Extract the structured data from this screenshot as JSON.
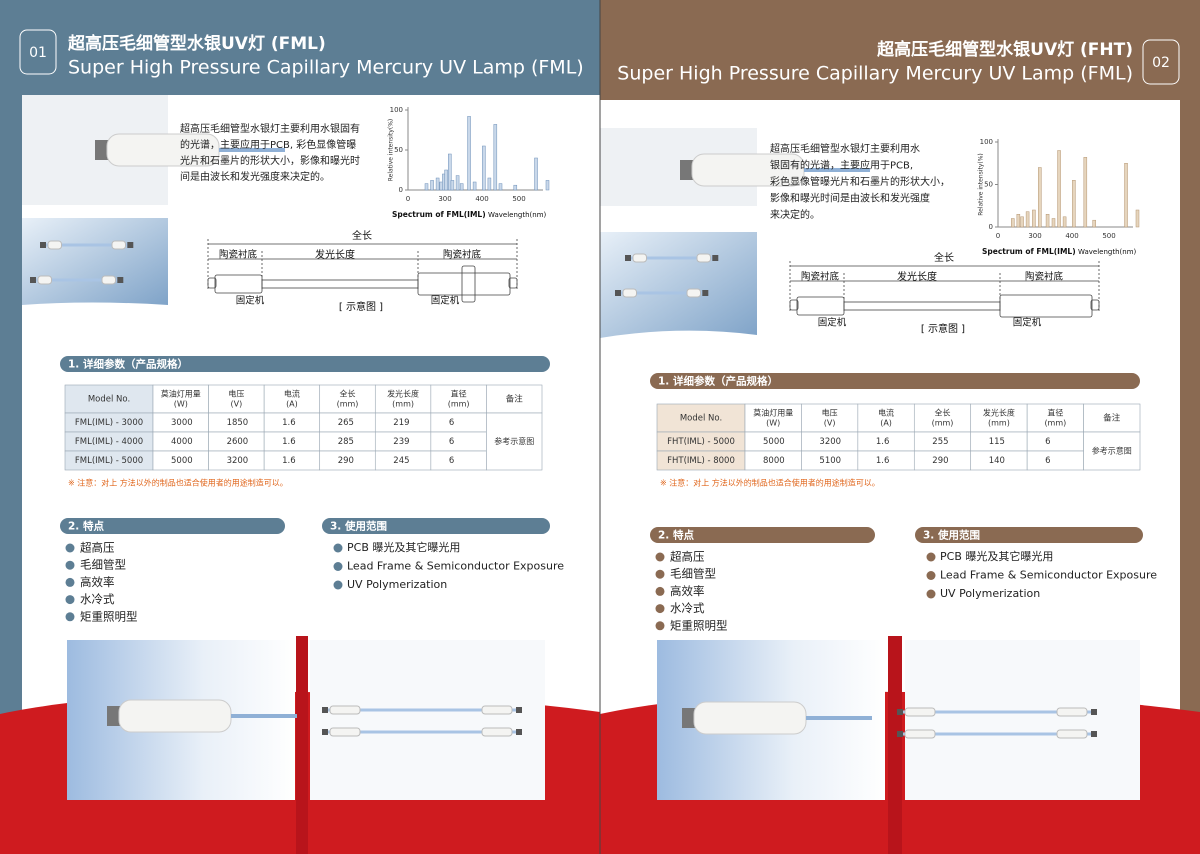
{
  "left": {
    "number": "01",
    "title_cn": "超高压毛细管型水银UV灯 (FML)",
    "title_en": "Super High Pressure Capillary Mercury UV Lamp (FML)",
    "description": [
      "超高压毛细管型水银灯主要利用水银固有",
      "的光谱，主要应用于PCB, 彩色显像管曝",
      "光片和石墨片的形状大小，影像和曝光时",
      "间是由波长和发光强度来决定的。"
    ],
    "spectrum": {
      "y_label": "Relative intensity(%)",
      "caption": "Spectrum of FML(IML)",
      "x_label": "Wavelength(nm)",
      "ylim": [
        0,
        100
      ],
      "yticks": [
        0,
        50,
        100
      ],
      "xticks": [
        0,
        300,
        400,
        500
      ],
      "peaks": [
        [
          250,
          8
        ],
        [
          265,
          12
        ],
        [
          280,
          15
        ],
        [
          290,
          10
        ],
        [
          297,
          20
        ],
        [
          303,
          25
        ],
        [
          313,
          45
        ],
        [
          320,
          12
        ],
        [
          334,
          18
        ],
        [
          345,
          8
        ],
        [
          365,
          92
        ],
        [
          380,
          10
        ],
        [
          405,
          55
        ],
        [
          420,
          15
        ],
        [
          436,
          82
        ],
        [
          450,
          8
        ],
        [
          490,
          6
        ],
        [
          546,
          40
        ],
        [
          577,
          12
        ]
      ]
    },
    "diagram": {
      "total": "全长",
      "ceramic_left": "陶瓷衬底",
      "emit": "发光长度",
      "ceramic_right": "陶瓷衬底",
      "fix_left": "固定机",
      "fix_right": "固定机",
      "caption": "[ 示意图 ]"
    },
    "section1": "1. 详细参数（产品规格）",
    "table": {
      "header": [
        [
          "Model No."
        ],
        [
          "莫油灯用量",
          "(W)"
        ],
        [
          "电压",
          "(V)"
        ],
        [
          "电流",
          "(A)"
        ],
        [
          "全长",
          "(mm)"
        ],
        [
          "发光长度",
          "(mm)"
        ],
        [
          "直径",
          "(mm)"
        ],
        [
          "备注"
        ]
      ],
      "rows": [
        [
          "FML(IML) - 3000",
          3000,
          1850,
          1.6,
          265,
          219,
          6
        ],
        [
          "FML(IML) - 4000",
          4000,
          2600,
          1.6,
          285,
          239,
          6
        ],
        [
          "FML(IML) - 5000",
          5000,
          3200,
          1.6,
          290,
          245,
          6
        ]
      ],
      "remark": "参考示意图"
    },
    "note": "※ 注意：对上 方法以外的制品也适合使用者的用途制造可以。",
    "section2": "2. 特点",
    "features": [
      "超高压",
      "毛细管型",
      "高效率",
      "水冷式",
      "矩重照明型"
    ],
    "section3": "3. 使用范围",
    "uses": [
      "PCB 曝光及其它曝光用",
      "Lead Frame & Semiconductor Exposure",
      "UV Polymerization"
    ]
  },
  "right": {
    "number": "02",
    "title_cn": "超高压毛细管型水银UV灯 (FHT)",
    "title_en": "Super High Pressure Capillary Mercury UV Lamp (FML)",
    "description": [
      "超高压毛细管型水银灯主要利用水",
      "银固有的光谱，主要应用于PCB,",
      "彩色显像管曝光片和石墨片的形状大小，",
      "影像和曝光时间是由波长和发光强度",
      "来决定的。"
    ],
    "spectrum": {
      "y_label": "Relative intensity(%)",
      "caption": "Spectrum of FML(IML)",
      "x_label": "Wavelength(nm)",
      "ylim": [
        0,
        100
      ],
      "yticks": [
        0,
        50,
        100
      ],
      "xticks": [
        0,
        300,
        400,
        500
      ],
      "peaks": [
        [
          240,
          10
        ],
        [
          255,
          15
        ],
        [
          265,
          12
        ],
        [
          280,
          18
        ],
        [
          297,
          20
        ],
        [
          313,
          70
        ],
        [
          334,
          15
        ],
        [
          350,
          10
        ],
        [
          365,
          90
        ],
        [
          380,
          12
        ],
        [
          405,
          55
        ],
        [
          436,
          82
        ],
        [
          460,
          8
        ],
        [
          546,
          75
        ],
        [
          577,
          20
        ]
      ]
    },
    "diagram": {
      "total": "全长",
      "ceramic_left": "陶瓷衬底",
      "emit": "发光长度",
      "ceramic_right": "陶瓷衬底",
      "fix_left": "固定机",
      "fix_right": "固定机",
      "caption": "[ 示意图 ]"
    },
    "section1": "1. 详细参数（产品规格）",
    "table": {
      "header": [
        [
          "Model No."
        ],
        [
          "莫油灯用量",
          "(W)"
        ],
        [
          "电压",
          "(V)"
        ],
        [
          "电流",
          "(A)"
        ],
        [
          "全长",
          "(mm)"
        ],
        [
          "发光长度",
          "(mm)"
        ],
        [
          "直径",
          "(mm)"
        ],
        [
          "备注"
        ]
      ],
      "rows": [
        [
          "FHT(IML) - 5000",
          5000,
          3200,
          1.6,
          255,
          115,
          6
        ],
        [
          "FHT(IML) - 8000",
          8000,
          5100,
          1.6,
          290,
          140,
          6
        ]
      ],
      "remark": "参考示意图"
    },
    "note": "※ 注意：对上 方法以外的制品也适合使用者的用途制造可以。",
    "section2": "2. 特点",
    "features": [
      "超高压",
      "毛细管型",
      "高效率",
      "水冷式",
      "矩重照明型"
    ],
    "section3": "3. 使用范围",
    "uses": [
      "PCB 曝光及其它曝光用",
      "Lead Frame & Semiconductor Exposure",
      "UV Polymerization"
    ]
  }
}
